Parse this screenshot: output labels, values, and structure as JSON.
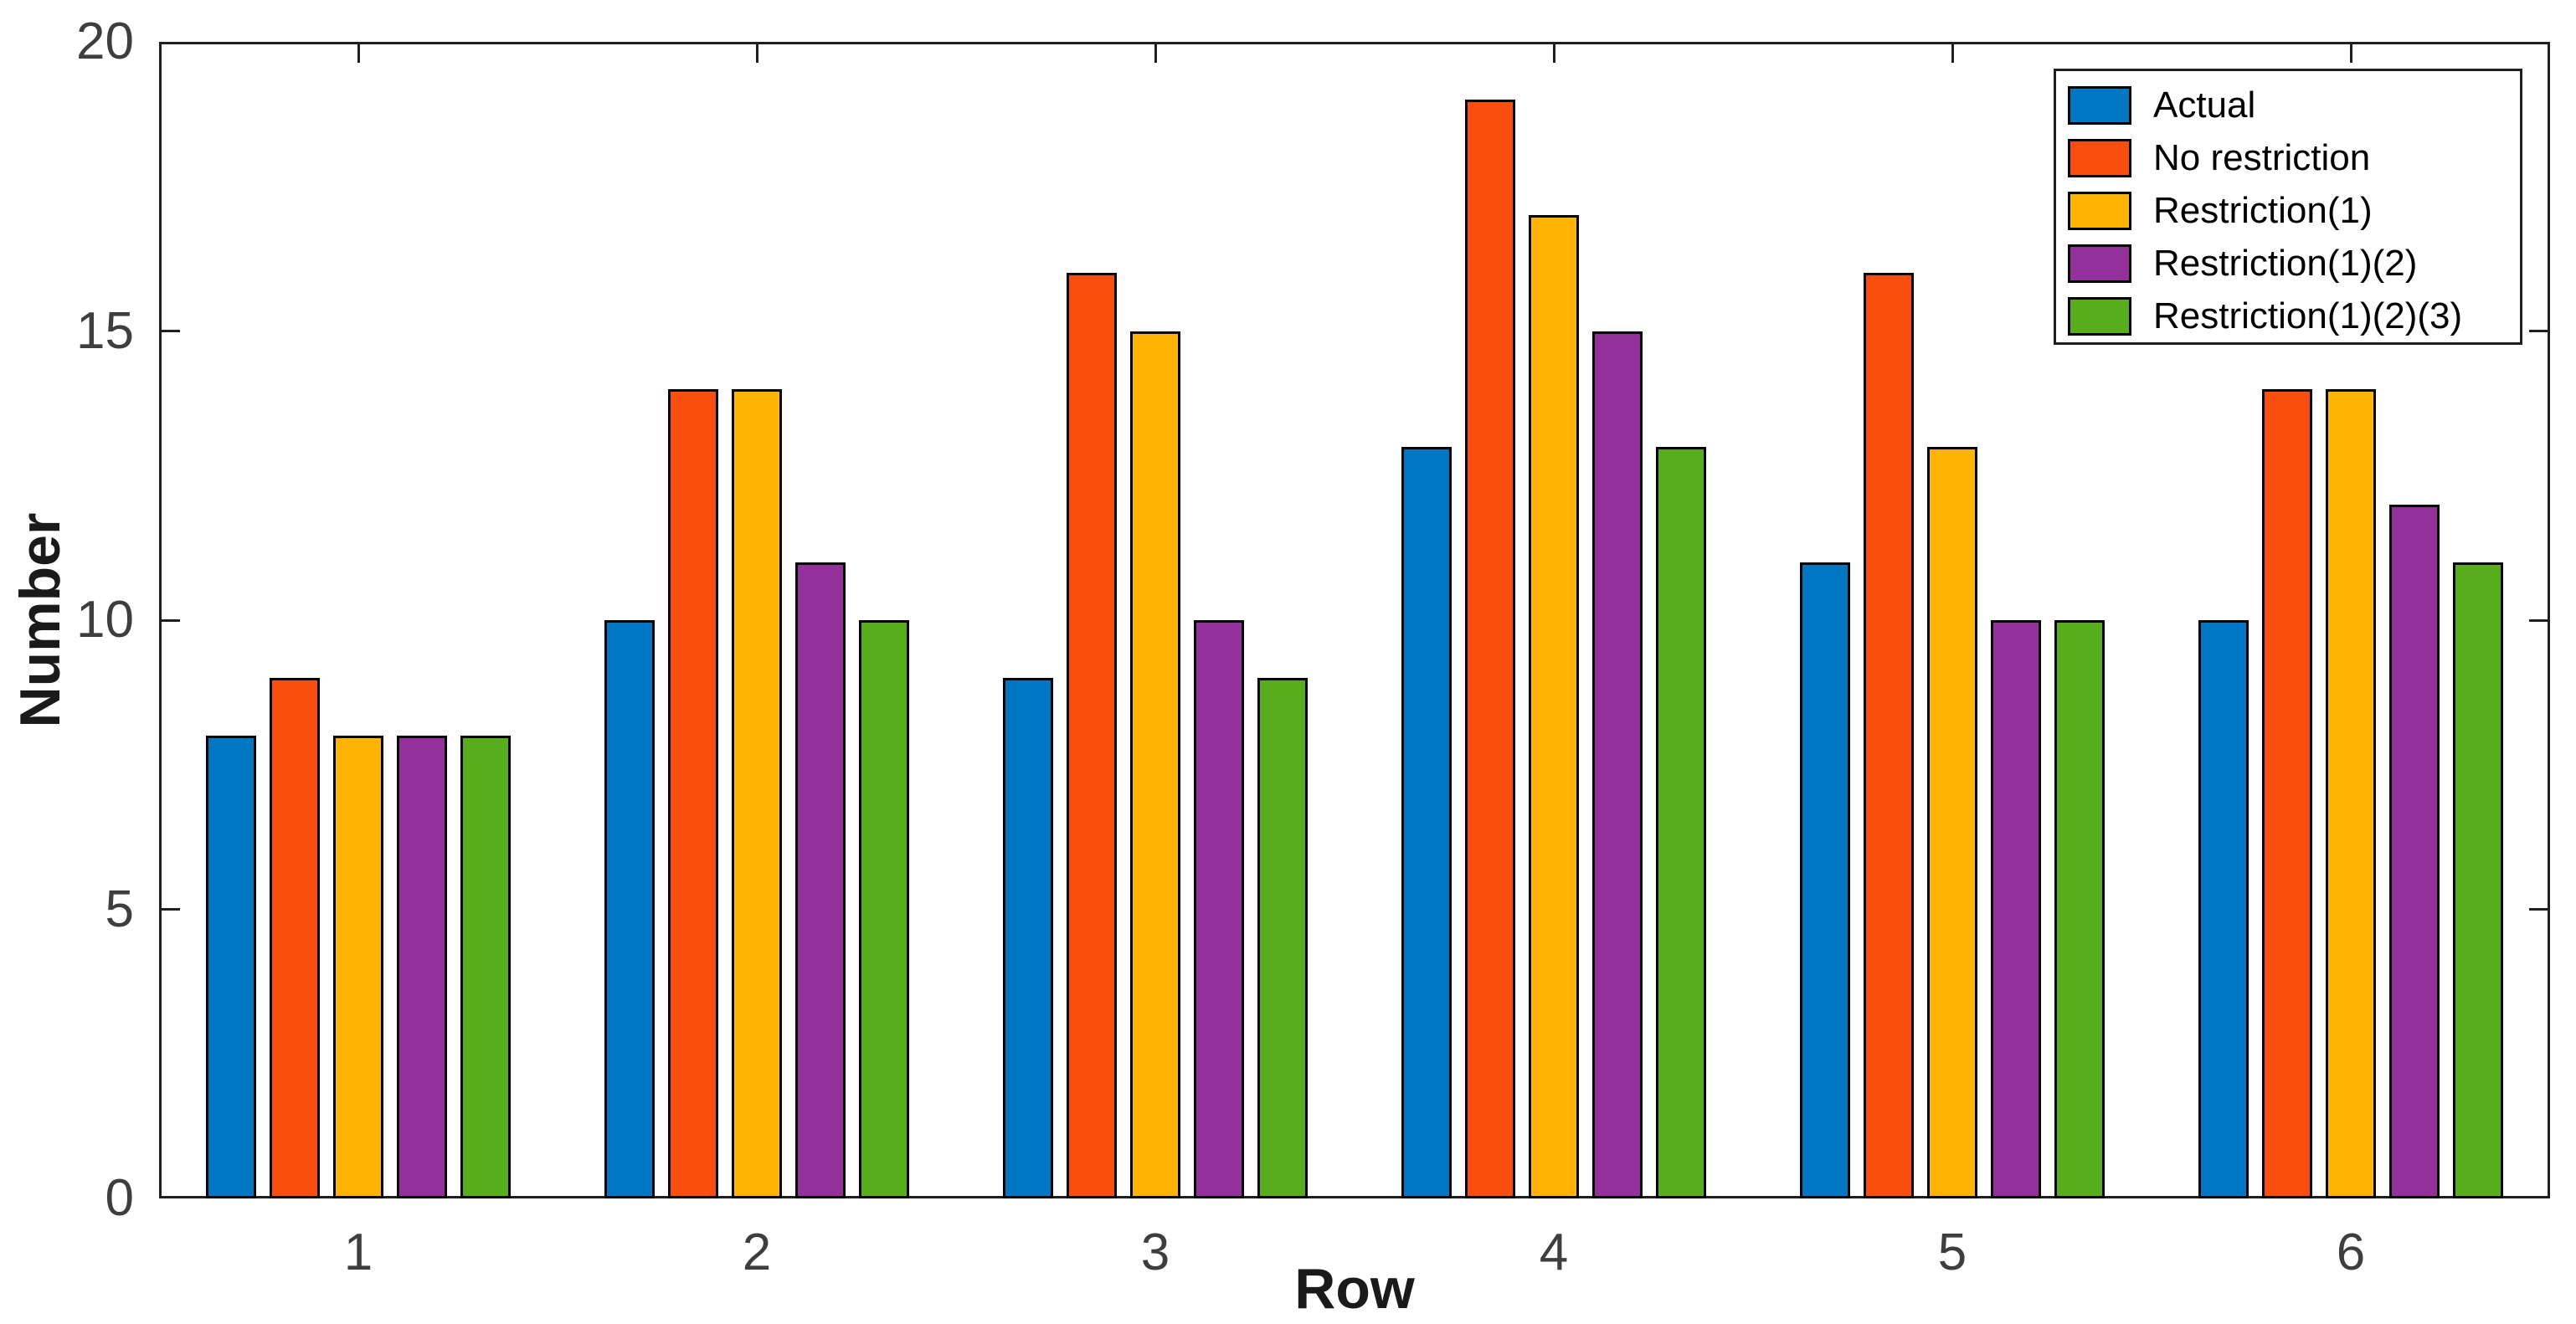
{
  "chart_data": {
    "type": "bar",
    "title": "",
    "xlabel": "Row",
    "ylabel": "Number",
    "categories": [
      "1",
      "2",
      "3",
      "4",
      "5",
      "6"
    ],
    "series": [
      {
        "name": "Actual",
        "color": "#0077C2",
        "values": [
          8,
          10,
          9,
          13,
          11,
          10
        ]
      },
      {
        "name": "No restriction",
        "color": "#FA4E0E",
        "values": [
          9,
          14,
          16,
          19,
          16,
          14
        ]
      },
      {
        "name": "Restriction(1)",
        "color": "#FFB405",
        "values": [
          8,
          14,
          15,
          17,
          13,
          14
        ]
      },
      {
        "name": "Restriction(1)(2)",
        "color": "#93309B",
        "values": [
          8,
          11,
          10,
          15,
          10,
          12
        ]
      },
      {
        "name": "Restriction(1)(2)(3)",
        "color": "#58AD1D",
        "values": [
          8,
          10,
          9,
          13,
          10,
          11
        ]
      }
    ],
    "ylim": [
      0,
      20
    ],
    "yticks": [
      0,
      5,
      10,
      15,
      20
    ],
    "ytick_labels": [
      "0",
      "5",
      "10",
      "15",
      "20"
    ],
    "grid": false,
    "legend_position": "top-right",
    "bar_edge_color": "#000000",
    "group_width_fraction": 0.8
  },
  "style_colors": {
    "axis_box": "#1f1f1f",
    "tick_label": "#3e3e3e",
    "axis_label": "#1a1a1a",
    "background": "#ffffff"
  }
}
